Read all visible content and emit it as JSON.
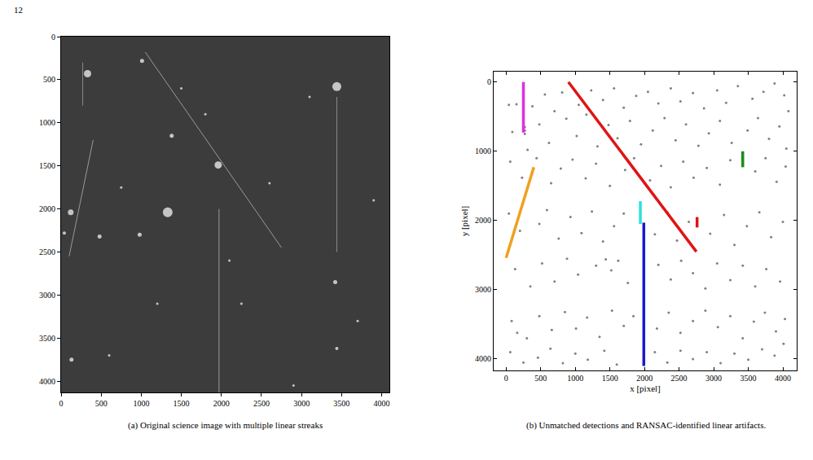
{
  "page_number": "12",
  "chart_data": [
    {
      "type": "image",
      "title": "(a) Original science image with multiple linear streaks",
      "xlim": [
        0,
        4096
      ],
      "ylim": [
        4130,
        0
      ],
      "xticks": [
        0,
        500,
        1000,
        1500,
        2000,
        2500,
        3000,
        3500,
        4000
      ],
      "yticks": [
        0,
        500,
        1000,
        1500,
        2000,
        2500,
        3000,
        3500,
        4000
      ],
      "grid": false,
      "series": [
        {
          "type": "line",
          "color": "#9a9a9a",
          "x": [
            1050,
            2750
          ],
          "values": [
            180,
            2450
          ]
        },
        {
          "type": "line",
          "color": "#9a9a9a",
          "x": [
            1970,
            1970
          ],
          "values": [
            2000,
            4130
          ]
        },
        {
          "type": "line",
          "color": "#9a9a9a",
          "x": [
            100,
            400
          ],
          "values": [
            2550,
            1200
          ]
        },
        {
          "type": "line",
          "color": "#8a8a8a",
          "x": [
            270,
            270
          ],
          "values": [
            300,
            800
          ]
        },
        {
          "type": "line",
          "color": "#8a8a8a",
          "x": [
            3440,
            3440
          ],
          "values": [
            700,
            2500
          ]
        },
        {
          "type": "scatter",
          "color": "#ffffff",
          "marker": "circle",
          "x": [
            330,
            3440,
            1960,
            1330,
            120,
            1010,
            1380,
            980,
            480,
            3420,
            130,
            40,
            3440,
            1800,
            2600,
            750,
            3700,
            2250,
            1200,
            3100,
            600,
            2900,
            1500,
            3900,
            2100
          ],
          "values": [
            430,
            580,
            1490,
            2040,
            2040,
            280,
            1150,
            2300,
            2320,
            2850,
            3750,
            2280,
            3620,
            900,
            1700,
            1750,
            3300,
            3100,
            3100,
            700,
            3700,
            4050,
            600,
            1900,
            2600
          ],
          "sizes": [
            9,
            11,
            9,
            12,
            7,
            5,
            5,
            5,
            5,
            5,
            5,
            4,
            4,
            3,
            3,
            3,
            3,
            3,
            3,
            3,
            3,
            3,
            3,
            3,
            3
          ]
        }
      ]
    },
    {
      "type": "scatter",
      "title": "(b) Unmatched detections and RANSAC-identified linear artifacts.",
      "x_label": "x [pixel]",
      "y_label": "y [pixel]",
      "xlim": [
        -180,
        4200
      ],
      "ylim": [
        4165,
        -150
      ],
      "xticks": [
        0,
        500,
        1000,
        1500,
        2000,
        2500,
        3000,
        3500,
        4000
      ],
      "yticks": [
        0,
        1000,
        2000,
        3000,
        4000
      ],
      "grid": false,
      "series": [
        {
          "type": "scatter",
          "color": "#808080",
          "marker": "circle",
          "x": [
            40,
            150,
            380,
            560,
            700,
            810,
            1050,
            1230,
            1400,
            1560,
            1700,
            1880,
            2050,
            2200,
            2380,
            2520,
            2700,
            2860,
            3050,
            3180,
            3350,
            3560,
            3720,
            3880,
            4020,
            4080,
            90,
            310,
            480,
            620,
            870,
            1020,
            1160,
            1320,
            1480,
            1610,
            1790,
            1950,
            2120,
            2290,
            2450,
            2600,
            2780,
            2930,
            3090,
            3260,
            3490,
            3640,
            3800,
            3950,
            4050,
            60,
            230,
            440,
            650,
            790,
            960,
            1150,
            1300,
            1500,
            1720,
            1850,
            2080,
            2240,
            2380,
            2560,
            2710,
            2900,
            3090,
            3240,
            3600,
            3750,
            3910,
            4040,
            40,
            200,
            480,
            590,
            760,
            930,
            1090,
            1240,
            1400,
            1560,
            1700,
            2150,
            2330,
            2470,
            2640,
            2950,
            3150,
            3300,
            3480,
            3660,
            3830,
            4000,
            130,
            350,
            520,
            700,
            880,
            1040,
            1300,
            1440,
            1520,
            1620,
            1760,
            2200,
            2380,
            2530,
            2700,
            2880,
            3050,
            3240,
            3420,
            3600,
            3760,
            3960,
            80,
            160,
            300,
            480,
            660,
            850,
            1010,
            1170,
            1350,
            1530,
            1700,
            1840,
            2180,
            2350,
            2520,
            2700,
            2880,
            3060,
            3240,
            3420,
            3580,
            3740,
            3900,
            4030,
            60,
            250,
            460,
            640,
            820,
            1000,
            1180,
            1420,
            1600,
            2150,
            2330,
            2520,
            2700,
            2900,
            3100,
            3300,
            3500,
            3700,
            3880,
            4010,
            270,
            270,
            270
          ],
          "values": [
            330,
            320,
            350,
            180,
            420,
            150,
            330,
            120,
            260,
            90,
            370,
            200,
            140,
            310,
            90,
            280,
            160,
            380,
            120,
            300,
            60,
            240,
            140,
            20,
            190,
            420,
            720,
            980,
            610,
            880,
            530,
            780,
            470,
            930,
            620,
            810,
            560,
            900,
            700,
            520,
            840,
            610,
            920,
            740,
            560,
            880,
            700,
            520,
            820,
            640,
            960,
            1150,
            1380,
            1100,
            1460,
            1250,
            1120,
            1390,
            1180,
            1500,
            1270,
            1100,
            1420,
            1210,
            1520,
            1150,
            1380,
            1240,
            1480,
            1130,
            1290,
            1100,
            1440,
            1220,
            1900,
            2150,
            2050,
            1850,
            2260,
            1950,
            2180,
            1870,
            2300,
            2080,
            1900,
            2200,
            1880,
            2290,
            2020,
            2190,
            1920,
            2350,
            2080,
            1880,
            2240,
            2020,
            2700,
            2950,
            2620,
            2880,
            2550,
            2780,
            2650,
            2560,
            2720,
            2580,
            2900,
            2640,
            2850,
            2580,
            2760,
            2980,
            2620,
            2860,
            2650,
            2950,
            2700,
            2880,
            3450,
            3620,
            3700,
            3380,
            3580,
            3320,
            3560,
            3400,
            3680,
            3300,
            3520,
            3380,
            3560,
            3330,
            3620,
            3450,
            3300,
            3540,
            3380,
            3700,
            3460,
            3330,
            3600,
            3420,
            3900,
            4050,
            3980,
            3850,
            4060,
            3920,
            4010,
            3880,
            4080,
            3900,
            4050,
            3880,
            4000,
            3900,
            4060,
            3920,
            4010,
            3860,
            3950,
            3780,
            650,
            700,
            750
          ]
        },
        {
          "type": "line",
          "color": "#e22de2",
          "x": [
            250,
            250
          ],
          "values": [
            0,
            730
          ]
        },
        {
          "type": "line",
          "color": "#e01414",
          "x": [
            900,
            2750
          ],
          "values": [
            0,
            2450
          ]
        },
        {
          "type": "line",
          "color": "#e01414",
          "x": [
            2760,
            2760
          ],
          "values": [
            1950,
            2100
          ]
        },
        {
          "type": "line",
          "color": "#1a8c1a",
          "x": [
            3420,
            3420
          ],
          "values": [
            1000,
            1230
          ]
        },
        {
          "type": "line",
          "color": "#f0a020",
          "x": [
            0,
            400
          ],
          "values": [
            2540,
            1230
          ]
        },
        {
          "type": "line",
          "color": "#2ee0e0",
          "x": [
            1940,
            1940
          ],
          "values": [
            1720,
            2050
          ]
        },
        {
          "type": "line",
          "color": "#1a1acc",
          "x": [
            1990,
            1990
          ],
          "values": [
            2030,
            4100
          ]
        }
      ]
    }
  ]
}
